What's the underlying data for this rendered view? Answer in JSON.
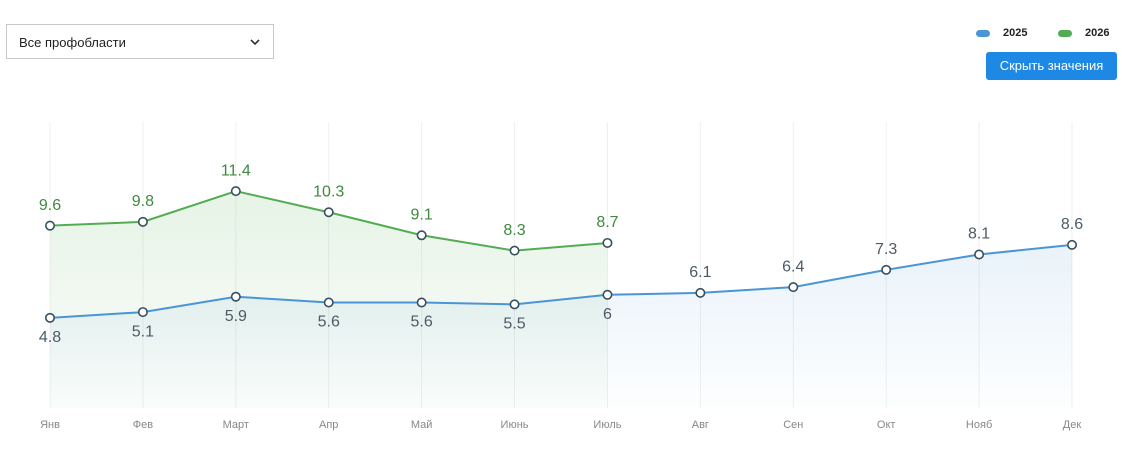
{
  "dropdown": {
    "label": "Все профобласти"
  },
  "button": {
    "label": "Скрыть значения"
  },
  "chart_data": {
    "type": "line",
    "categories": [
      "Янв",
      "Фев",
      "Март",
      "Апр",
      "Май",
      "Июнь",
      "Июль",
      "Авг",
      "Сен",
      "Окт",
      "Нояб",
      "Дек"
    ],
    "series": [
      {
        "name": "2025",
        "color": "#4a95d6",
        "values": [
          4.8,
          5.1,
          5.9,
          5.6,
          5.6,
          5.5,
          6,
          6.1,
          6.4,
          7.3,
          8.1,
          8.6
        ]
      },
      {
        "name": "2026",
        "color": "#52ad52",
        "values": [
          9.6,
          9.8,
          11.4,
          10.3,
          9.1,
          8.3,
          8.7,
          null,
          null,
          null,
          null,
          null
        ]
      }
    ],
    "ylim": [
      0,
      15
    ],
    "grid": true,
    "legend": "top-right"
  }
}
